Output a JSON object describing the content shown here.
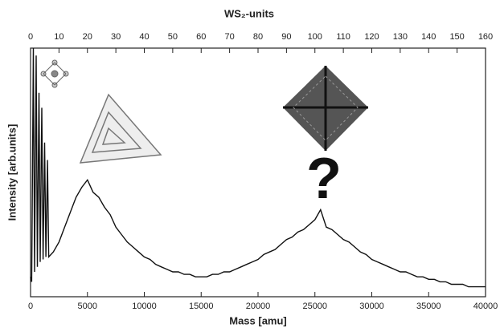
{
  "chart_data": {
    "type": "line",
    "title": "WS₂-units",
    "x_label": "Mass [amu]",
    "y_label": "Intensity [arb.units]",
    "annotation": "?",
    "color": "#111111",
    "x": [
      0,
      100,
      248,
      350,
      496,
      600,
      744,
      850,
      992,
      1100,
      1240,
      1350,
      1488,
      1600,
      2000,
      2500,
      3000,
      3500,
      4000,
      4500,
      5000,
      5500,
      6000,
      6500,
      7000,
      7500,
      8000,
      8500,
      9000,
      9500,
      10000,
      10500,
      11000,
      11500,
      12000,
      12500,
      13000,
      13500,
      14000,
      14500,
      15000,
      15500,
      16000,
      16500,
      17000,
      17500,
      18000,
      18500,
      19000,
      19500,
      20000,
      20500,
      21000,
      21500,
      22000,
      22500,
      23000,
      23500,
      24000,
      24500,
      25000,
      25500,
      26000,
      26500,
      27000,
      27500,
      28000,
      28500,
      29000,
      29500,
      30000,
      30500,
      31000,
      31500,
      32000,
      32500,
      33000,
      33500,
      34000,
      34500,
      35000,
      35500,
      36000,
      36500,
      37000,
      37500,
      38000,
      38500,
      39000,
      39500,
      40000
    ],
    "values": [
      8,
      6,
      100,
      10,
      97,
      12,
      82,
      14,
      76,
      15,
      62,
      16,
      55,
      16,
      18,
      22,
      28,
      34,
      40,
      44,
      47,
      42,
      40,
      36,
      33,
      28,
      25,
      22,
      20,
      18,
      16,
      15,
      13,
      12,
      11,
      10,
      10,
      9,
      9,
      8,
      8,
      8,
      9,
      9,
      10,
      10,
      11,
      12,
      13,
      14,
      15,
      17,
      18,
      19,
      21,
      23,
      24,
      26,
      27,
      29,
      31,
      35,
      28,
      27,
      25,
      23,
      22,
      20,
      18,
      17,
      15,
      14,
      13,
      12,
      11,
      10,
      10,
      9,
      8,
      8,
      7,
      7,
      6,
      6,
      5,
      5,
      5,
      4,
      4,
      4,
      4
    ],
    "xlim": [
      0,
      40000
    ],
    "xticks": [
      0,
      5000,
      10000,
      15000,
      20000,
      25000,
      30000,
      35000,
      40000
    ],
    "x2lim": [
      0,
      160
    ],
    "x2ticks": [
      0,
      10,
      20,
      30,
      40,
      50,
      60,
      70,
      80,
      90,
      100,
      110,
      120,
      130,
      140,
      150,
      160
    ],
    "ylim": [
      0,
      100
    ]
  }
}
